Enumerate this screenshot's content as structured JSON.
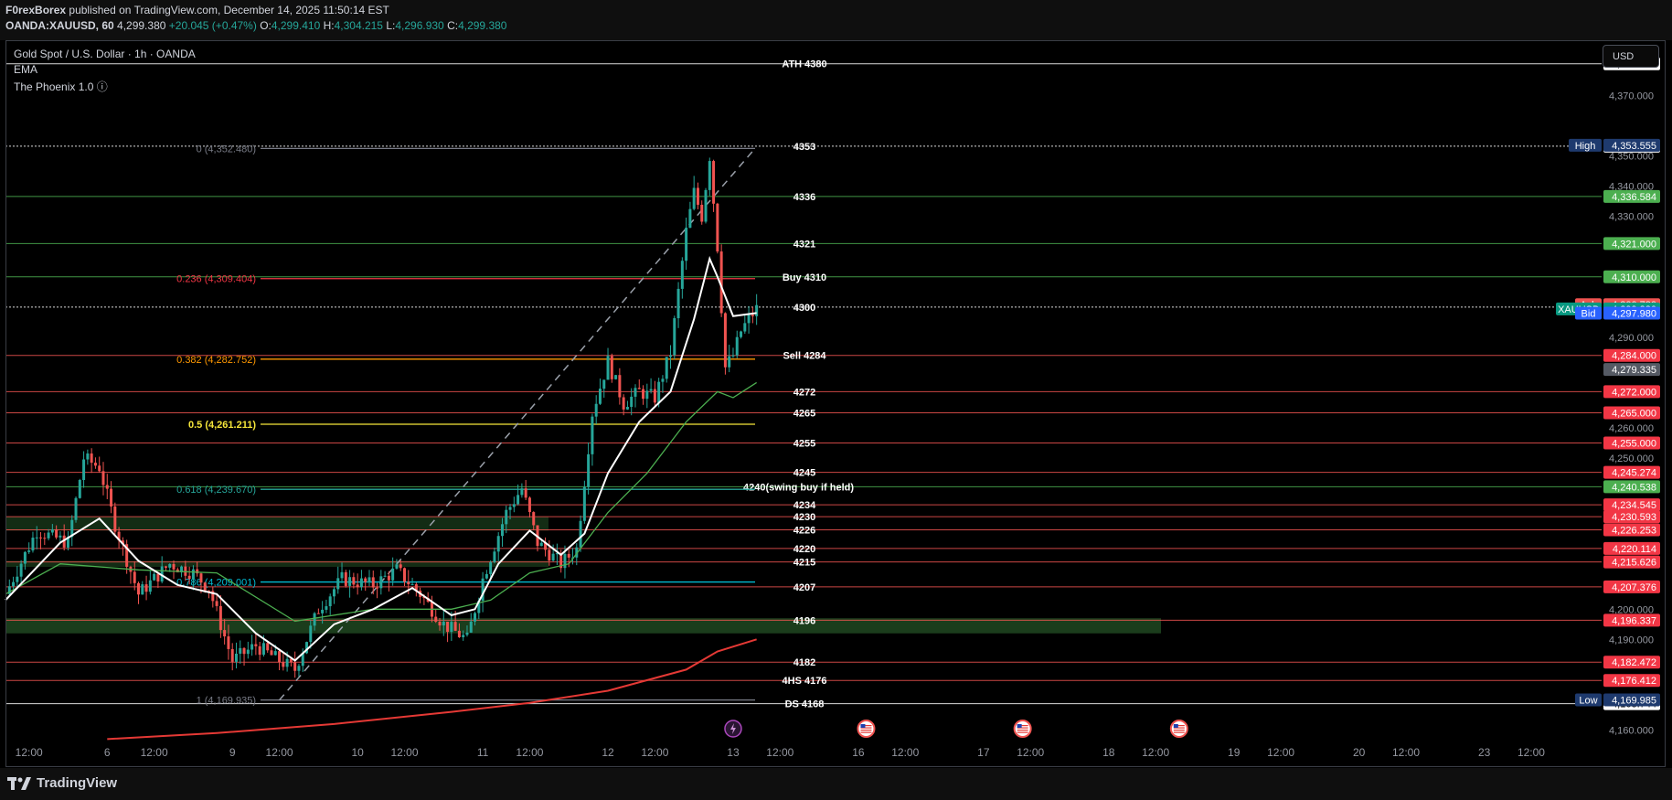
{
  "header": {
    "publisher": "F0rexBorex",
    "published_text": "published on TradingView.com, December 14, 2025 11:50:14 EST",
    "symbol": "OANDA:XAUUSD, 60",
    "last": "4,299.380",
    "change": "+20.045 (+0.47%)",
    "o_label": "O:",
    "o": "4,299.410",
    "h_label": "H:",
    "h": "4,304.215",
    "l_label": "L:",
    "l": "4,296.930",
    "c_label": "C:",
    "c": "4,299.380"
  },
  "legend": {
    "instrument": "Gold Spot / U.S. Dollar · 1h · OANDA",
    "indicator1": "EMA",
    "indicator2": "The Phoenix 1.0 ⓘ"
  },
  "currency_button": "USD",
  "footer": {
    "brand": "TradingView"
  },
  "colors": {
    "up": "#26a69a",
    "down": "#ef5350",
    "ema_fast": "#ffffff",
    "ema_slow": "#4caf50",
    "ema_long": "#e53935",
    "yellow": "#f5e63a"
  },
  "chart_data": {
    "type": "candlestick",
    "title": "Gold Spot / U.S. Dollar · 1h · OANDA",
    "y_axis_side": "right",
    "ylim": [
      4155,
      4388
    ],
    "y_ticks": [
      "4,370.000",
      "4,350.000",
      "4,340.000",
      "4,330.000",
      "4,290.000",
      "4,260.000",
      "4,250.000",
      "4,200.000",
      "4,190.000",
      "4,160.000"
    ],
    "x_ticks": [
      {
        "t": -4,
        "label": "12:00"
      },
      {
        "t": 6,
        "label": "6"
      },
      {
        "t": 12,
        "label": "12:00"
      },
      {
        "t": 22,
        "label": "9"
      },
      {
        "t": 28,
        "label": "12:00"
      },
      {
        "t": 38,
        "label": "10"
      },
      {
        "t": 44,
        "label": "12:00"
      },
      {
        "t": 54,
        "label": "11"
      },
      {
        "t": 60,
        "label": "12:00"
      },
      {
        "t": 70,
        "label": "12"
      },
      {
        "t": 76,
        "label": "12:00"
      },
      {
        "t": 86,
        "label": "13"
      },
      {
        "t": 92,
        "label": "12:00"
      },
      {
        "t": 102,
        "label": "16"
      },
      {
        "t": 108,
        "label": "12:00"
      },
      {
        "t": 118,
        "label": "17"
      },
      {
        "t": 124,
        "label": "12:00"
      },
      {
        "t": 134,
        "label": "18"
      },
      {
        "t": 140,
        "label": "12:00"
      },
      {
        "t": 150,
        "label": "19"
      },
      {
        "t": 156,
        "label": "12:00"
      },
      {
        "t": 166,
        "label": "20"
      },
      {
        "t": 172,
        "label": "12:00"
      },
      {
        "t": 182,
        "label": "23"
      },
      {
        "t": 188,
        "label": "12:00"
      }
    ],
    "x_time_range": [
      -7,
      197
    ],
    "key_points": [
      {
        "t": -7,
        "p": 4205
      },
      {
        "t": -3,
        "p": 4226
      },
      {
        "t": 1,
        "p": 4222
      },
      {
        "t": 3,
        "p": 4250
      },
      {
        "t": 5,
        "p": 4247
      },
      {
        "t": 7,
        "p": 4228
      },
      {
        "t": 10,
        "p": 4205
      },
      {
        "t": 14,
        "p": 4215
      },
      {
        "t": 17,
        "p": 4212
      },
      {
        "t": 19,
        "p": 4207
      },
      {
        "t": 22,
        "p": 4183
      },
      {
        "t": 25,
        "p": 4188
      },
      {
        "t": 28,
        "p": 4183
      },
      {
        "t": 30,
        "p": 4180
      },
      {
        "t": 33,
        "p": 4200
      },
      {
        "t": 36,
        "p": 4210
      },
      {
        "t": 40,
        "p": 4208
      },
      {
        "t": 43,
        "p": 4213
      },
      {
        "t": 46,
        "p": 4205
      },
      {
        "t": 49,
        "p": 4195
      },
      {
        "t": 52,
        "p": 4190
      },
      {
        "t": 54,
        "p": 4210
      },
      {
        "t": 57,
        "p": 4232
      },
      {
        "t": 59,
        "p": 4240
      },
      {
        "t": 61,
        "p": 4222
      },
      {
        "t": 64,
        "p": 4215
      },
      {
        "t": 66,
        "p": 4220
      },
      {
        "t": 68,
        "p": 4265
      },
      {
        "t": 70,
        "p": 4282
      },
      {
        "t": 72,
        "p": 4268
      },
      {
        "t": 74,
        "p": 4272
      },
      {
        "t": 76,
        "p": 4270
      },
      {
        "t": 78,
        "p": 4285
      },
      {
        "t": 80,
        "p": 4325
      },
      {
        "t": 81,
        "p": 4338
      },
      {
        "t": 82,
        "p": 4330
      },
      {
        "t": 83,
        "p": 4350
      },
      {
        "t": 84,
        "p": 4320
      },
      {
        "t": 85,
        "p": 4280
      },
      {
        "t": 86,
        "p": 4284
      },
      {
        "t": 87,
        "p": 4292
      },
      {
        "t": 88,
        "p": 4296
      },
      {
        "t": 89,
        "p": 4299.38
      }
    ],
    "ema_fast": [
      [
        -7,
        4203
      ],
      [
        0,
        4222
      ],
      [
        5,
        4230
      ],
      [
        10,
        4216
      ],
      [
        15,
        4208
      ],
      [
        20,
        4205
      ],
      [
        25,
        4192
      ],
      [
        30,
        4183
      ],
      [
        35,
        4195
      ],
      [
        40,
        4200
      ],
      [
        45,
        4207
      ],
      [
        50,
        4198
      ],
      [
        53,
        4200
      ],
      [
        56,
        4215
      ],
      [
        60,
        4226
      ],
      [
        64,
        4218
      ],
      [
        67,
        4225
      ],
      [
        70,
        4245
      ],
      [
        74,
        4262
      ],
      [
        78,
        4272
      ],
      [
        81,
        4296
      ],
      [
        83,
        4316
      ],
      [
        84,
        4310
      ],
      [
        86,
        4297
      ],
      [
        89,
        4298
      ]
    ],
    "ema_slow": [
      [
        -7,
        4205
      ],
      [
        0,
        4215
      ],
      [
        10,
        4213
      ],
      [
        20,
        4212
      ],
      [
        30,
        4196
      ],
      [
        40,
        4200
      ],
      [
        50,
        4200
      ],
      [
        55,
        4203
      ],
      [
        60,
        4212
      ],
      [
        65,
        4215
      ],
      [
        70,
        4232
      ],
      [
        75,
        4245
      ],
      [
        80,
        4262
      ],
      [
        84,
        4272
      ],
      [
        86,
        4270
      ],
      [
        89,
        4275
      ]
    ],
    "ema_long": [
      [
        6,
        4157
      ],
      [
        20,
        4159
      ],
      [
        35,
        4162
      ],
      [
        50,
        4166
      ],
      [
        60,
        4169
      ],
      [
        70,
        4173
      ],
      [
        80,
        4180
      ],
      [
        84,
        4186
      ],
      [
        89,
        4190
      ]
    ],
    "horizontal_levels": [
      {
        "price": 4380.513,
        "label": "ATH 4380",
        "color": "#ffffff",
        "badge": "4,380.513"
      },
      {
        "price": 4353.256,
        "label": "4353",
        "color": "#ffffff",
        "dotted": true,
        "badge": "4,353.256"
      },
      {
        "price": 4336.584,
        "label": "4336",
        "color": "#4caf50",
        "badge": "4,336.584"
      },
      {
        "price": 4321.0,
        "label": "4321",
        "color": "#4caf50",
        "badge": "4,321.000"
      },
      {
        "price": 4310.0,
        "label": "Buy 4310",
        "color": "#4caf50",
        "badge": "4,310.000"
      },
      {
        "price": 4300.0,
        "label": "4300",
        "color": "#ffffff",
        "dotted": true,
        "badge": "4,300.000"
      },
      {
        "price": 4284.0,
        "label": "Sell 4284",
        "color": "#ef5350",
        "badge": "4,284.000"
      },
      {
        "price": 4272.0,
        "label": "4272",
        "color": "#ef5350",
        "badge": "4,272.000"
      },
      {
        "price": 4265.0,
        "label": "4265",
        "color": "#ef5350",
        "badge": "4,265.000"
      },
      {
        "price": 4255.0,
        "label": "4255",
        "color": "#ef5350",
        "badge": "4,255.000"
      },
      {
        "price": 4245.274,
        "label": "4245",
        "color": "#ef5350",
        "badge": "4,245.274"
      },
      {
        "price": 4240.538,
        "label": "4240(swing buy if held)",
        "color": "#4caf50",
        "badge": "4,240.538"
      },
      {
        "price": 4234.545,
        "label": "4234",
        "color": "#ef5350",
        "badge": "4,234.545"
      },
      {
        "price": 4230.593,
        "label": "4230",
        "color": "#ef5350",
        "badge": "4,230.593"
      },
      {
        "price": 4226.253,
        "label": "4226",
        "color": "#ef5350",
        "badge": "4,226.253"
      },
      {
        "price": 4220.114,
        "label": "4220",
        "color": "#ef5350",
        "badge": "4,220.114"
      },
      {
        "price": 4215.626,
        "label": "4215",
        "color": "#ef5350",
        "badge": "4,215.626"
      },
      {
        "price": 4207.376,
        "label": "4207",
        "color": "#ef5350",
        "badge": "4,207.376"
      },
      {
        "price": 4196.337,
        "label": "4196",
        "color": "#ef5350",
        "badge": "4,196.337"
      },
      {
        "price": 4182.472,
        "label": "4182",
        "color": "#ef5350",
        "badge": "4,182.472"
      },
      {
        "price": 4176.412,
        "label": "4HS 4176",
        "color": "#ef5350",
        "badge": "4,176.412"
      },
      {
        "price": 4168.744,
        "label": "DS 4168",
        "color": "#ffffff",
        "badge": "4,168.744"
      }
    ],
    "fibonacci": [
      {
        "price": 4352.48,
        "label": "0 (4,352.480)",
        "color": "#787b86"
      },
      {
        "price": 4309.404,
        "label": "0.236 (4,309.404)",
        "color": "#f23645"
      },
      {
        "price": 4282.752,
        "label": "0.382 (4,282.752)",
        "color": "#ff9800"
      },
      {
        "price": 4261.211,
        "label": "0.5 (4,261.211)",
        "color": "#f5e63a"
      },
      {
        "price": 4239.67,
        "label": "0.618 (4,239.670)",
        "color": "#26a69a"
      },
      {
        "price": 4209.001,
        "label": "0.786 (4,209.001)",
        "color": "#00bcd4"
      },
      {
        "price": 4169.935,
        "label": "1 (4,169.935)",
        "color": "#787b86"
      }
    ],
    "zones": [
      {
        "from": 4226,
        "to": 4230.5,
        "color": "rgba(76,175,80,0.25)"
      },
      {
        "from": 4214,
        "to": 4216,
        "color": "rgba(76,175,80,0.25)"
      },
      {
        "from": 4192,
        "to": 4197,
        "color": "rgba(76,175,80,0.35)"
      }
    ],
    "side_badges": [
      {
        "price": 4353.555,
        "tag": "High",
        "value": "4,353.555",
        "color": "#1e3a6e"
      },
      {
        "price": 4300.78,
        "tag": "Ask",
        "value": "4,300.780",
        "color": "#ef5350"
      },
      {
        "price": 4299.38,
        "tag": "XAUUSD",
        "value": "4,299.380",
        "color": "#089981"
      },
      {
        "price": 4297.98,
        "tag": "Bid",
        "value": "4,297.980",
        "color": "#2962ff"
      },
      {
        "price": 4279.335,
        "tag": "",
        "value": "4,279.335",
        "color": "#555a64"
      },
      {
        "price": 4169.985,
        "tag": "Low",
        "value": "4,169.985",
        "color": "#1e3a6e"
      }
    ],
    "event_markers": [
      {
        "t": 86,
        "icon": "lightning-icon"
      },
      {
        "t": 103,
        "icon": "us-flag-icon"
      },
      {
        "t": 123,
        "icon": "us-flag-icon"
      },
      {
        "t": 143,
        "icon": "us-flag-icon"
      }
    ]
  }
}
